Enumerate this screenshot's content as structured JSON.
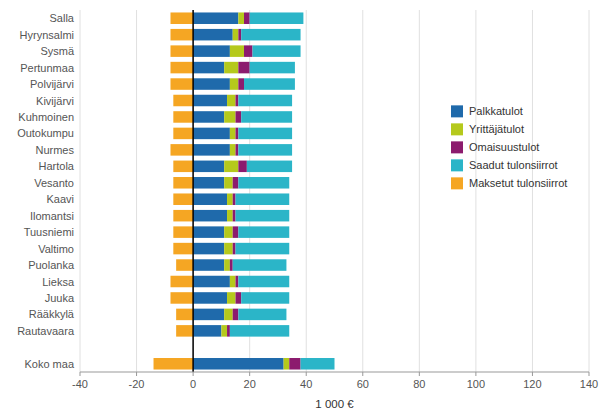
{
  "chart_data": {
    "type": "bar",
    "orientation": "horizontal",
    "stacked": true,
    "grid": true,
    "legend": "upper right",
    "xlabel": "1 000 €",
    "categories": [
      "Salla",
      "Hyrynsalmi",
      "Sysmä",
      "Pertunmaa",
      "Polvijärvi",
      "Kivijärvi",
      "Kuhmoinen",
      "Outokumpu",
      "Nurmes",
      "Hartola",
      "Vesanto",
      "Kaavi",
      "Ilomantsi",
      "Tuusniemi",
      "Valtimo",
      "Puolanka",
      "Lieksa",
      "Juuka",
      "Rääkkylä",
      "Rautavaara",
      null,
      "Koko maa"
    ],
    "series": [
      {
        "name": "Palkkatulot",
        "color": "#1f6aab",
        "values": [
          16,
          14,
          13,
          11,
          13,
          12,
          11,
          13,
          13,
          11,
          11,
          12,
          12,
          11,
          11,
          11,
          13,
          12,
          11,
          10,
          0,
          32
        ]
      },
      {
        "name": "Yrittäjätulot",
        "color": "#b5c91c",
        "values": [
          2,
          2,
          5,
          5,
          3,
          3,
          4,
          2,
          2,
          5,
          3,
          2,
          2,
          3,
          3,
          2,
          2,
          3,
          3,
          2,
          0,
          2
        ]
      },
      {
        "name": "Omaisuustulot",
        "color": "#8c1b6e",
        "values": [
          2,
          1,
          3,
          4,
          2,
          1,
          2,
          1,
          1,
          3,
          2,
          1,
          1,
          2,
          1,
          1,
          1,
          2,
          2,
          1,
          0,
          4
        ]
      },
      {
        "name": "Saadut tulonsiirrot",
        "color": "#2bb5c8",
        "values": [
          19,
          21,
          17,
          16,
          18,
          19,
          18,
          19,
          19,
          16,
          18,
          19,
          19,
          18,
          19,
          19,
          18,
          17,
          17,
          21,
          0,
          12
        ]
      },
      {
        "name": "Maksetut tulonsiirrot",
        "color": "#f5a623",
        "values": [
          -8,
          -8,
          -8,
          -8,
          -8,
          -7,
          -7,
          -7,
          -8,
          -7,
          -7,
          -7,
          -7,
          -7,
          -7,
          -6,
          -8,
          -8,
          -6,
          -6,
          0,
          -14
        ]
      }
    ],
    "xlim": [
      -40,
      140
    ],
    "xticks": [
      -40,
      -20,
      0,
      20,
      40,
      60,
      80,
      100,
      120,
      140
    ]
  }
}
